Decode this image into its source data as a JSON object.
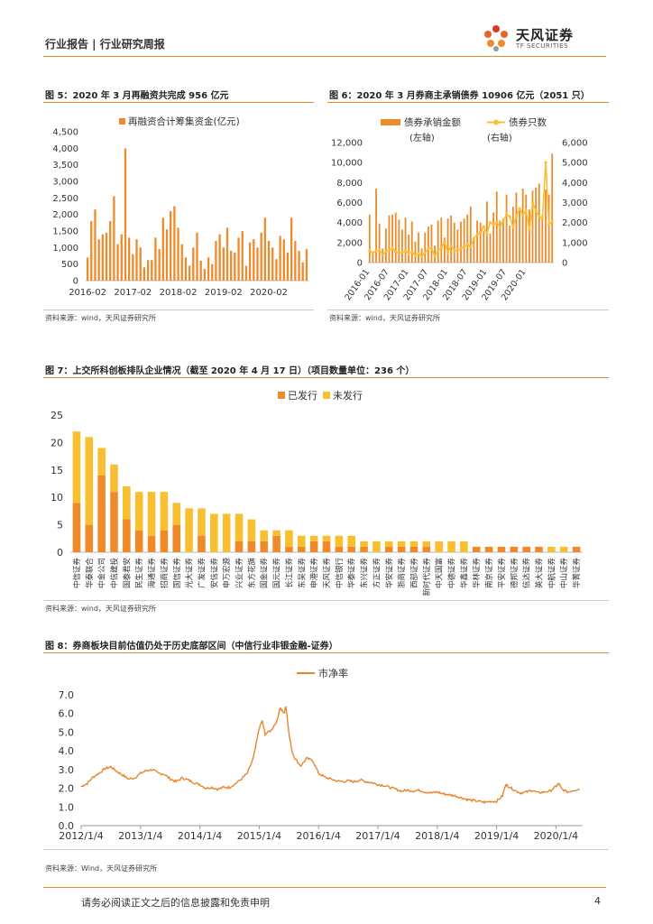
{
  "header": {
    "text": "行业报告 | 行业研究周报"
  },
  "logo": {
    "name": "天风证券",
    "sub": "TF SECURITIES"
  },
  "figures": {
    "fig5": {
      "title": "图 5：2020 年 3 月再融资共完成 956 亿元",
      "source": "资料来源：wind，天风证券研究所"
    },
    "fig6": {
      "title": "图 6：2020 年 3 月券商主承销债券 10906 亿元（2051 只）",
      "source": "资料来源：wind，天风证券研究所"
    },
    "fig7": {
      "title": "图 7：上交所科创板排队企业情况（截至 2020 年 4 月 17 日）（项目数量单位：236 个）",
      "source": "资料来源：wind，天风证券研究所"
    },
    "fig8": {
      "title": "图 8：券商板块目前估值仍处于历史底部区间（中信行业非银金融-证券）",
      "source": "资料来源：Wind，天风证券研究所"
    }
  },
  "footer": {
    "disclaimer": "请务必阅读正文之后的信息披露和免责申明",
    "page": "4"
  },
  "colors": {
    "orange": "#ef8a2a",
    "yellow": "#f8c030",
    "line": "#e8862e",
    "accent": "#e58a2c"
  },
  "chart_data": [
    {
      "id": "fig5",
      "type": "bar",
      "legend": [
        "再融资合计筹集资金(亿元)"
      ],
      "ylim": [
        0,
        4500
      ],
      "yticks": [
        "0",
        "500",
        "1,000",
        "1,500",
        "2,000",
        "2,500",
        "3,000",
        "3,500",
        "4,000",
        "4,500"
      ],
      "xticks": [
        "2016-02",
        "2017-02",
        "2018-02",
        "2019-02",
        "2020-02"
      ],
      "values": [
        700,
        1800,
        2150,
        1250,
        1400,
        1450,
        1800,
        2550,
        1100,
        1400,
        4000,
        1300,
        800,
        1250,
        1000,
        400,
        620,
        620,
        1300,
        950,
        1900,
        1550,
        2100,
        2250,
        1600,
        1100,
        700,
        450,
        1000,
        1450,
        600,
        350,
        700,
        500,
        1200,
        1400,
        1000,
        1600,
        900,
        850,
        1300,
        1500,
        450,
        1150,
        1250,
        1000,
        1450,
        1900,
        1200,
        1000,
        650,
        1350,
        1250,
        850,
        1900,
        1200,
        900,
        550,
        950
      ],
      "series": [
        {
          "name": "再融资合计筹集资金(亿元)"
        }
      ]
    },
    {
      "id": "fig6",
      "type": "bar+line",
      "legend": [
        "债券承销金额",
        "债券只数"
      ],
      "legend_sub": [
        "(左轴)",
        "(右轴)"
      ],
      "ylim_left": [
        0,
        12000
      ],
      "ylim_right": [
        0,
        6000
      ],
      "yticks_left": [
        "0",
        "2,000",
        "4,000",
        "6,000",
        "8,000",
        "10,000",
        "12,000"
      ],
      "yticks_right": [
        "0",
        "1,000",
        "2,000",
        "3,000",
        "4,000",
        "5,000",
        "6,000"
      ],
      "xticks": [
        "2016-01",
        "2016-07",
        "2017-01",
        "2017-07",
        "2018-01",
        "2018-07",
        "2019-01",
        "2019-07",
        "2020-01"
      ],
      "series": [
        {
          "name": "债券承销金额",
          "axis": "left",
          "values": [
            4800,
            1100,
            7400,
            3900,
            1400,
            3400,
            4700,
            4800,
            5000,
            4300,
            3300,
            4500,
            2800,
            4100,
            2100,
            3000,
            1400,
            3000,
            3600,
            3800,
            1700,
            4200,
            4500,
            2500,
            4400,
            4700,
            4000,
            3300,
            4100,
            4400,
            4800,
            5600,
            2400,
            4200,
            4000,
            3200,
            6100,
            2900,
            5000,
            7100,
            4200,
            4400,
            6800,
            3700,
            5600,
            7000,
            5200,
            7400,
            6800,
            5300,
            7200,
            7500,
            7900,
            4800,
            7300,
            6800,
            10900
          ]
        },
        {
          "name": "债券只数",
          "axis": "right",
          "values": [
            600,
            480,
            580,
            620,
            400,
            560,
            620,
            700,
            560,
            450,
            520,
            580,
            470,
            530,
            380,
            450,
            320,
            480,
            700,
            720,
            320,
            600,
            720,
            1050,
            500,
            850,
            600,
            600,
            700,
            800,
            900,
            800,
            1200,
            1400,
            1500,
            1800,
            1450,
            2000,
            1900,
            2000,
            1800,
            2100,
            2400,
            2300,
            1800,
            2300,
            2700,
            2400,
            2600,
            1600,
            3000,
            2600,
            2300,
            2200,
            5000,
            1900,
            2051
          ]
        }
      ]
    },
    {
      "id": "fig7",
      "type": "stacked-bar",
      "legend": [
        "已发行",
        "未发行"
      ],
      "ylim": [
        0,
        25
      ],
      "yticks": [
        "0",
        "5",
        "10",
        "15",
        "20",
        "25"
      ],
      "categories": [
        "中信证券",
        "华泰联合",
        "中金公司",
        "中信建投",
        "国泰君安",
        "民生证券",
        "海通证券",
        "招商证券",
        "国信证券",
        "光大证券",
        "广发证券",
        "安信证券",
        "申万宏源",
        "兴业证券",
        "东方花旗",
        "国金证券",
        "国元证券",
        "长江证券",
        "东吴证券",
        "申港证券",
        "天风证券",
        "中信银行",
        "华泰证券",
        "东兴证券",
        "方正证券",
        "华安证券",
        "浙商证券",
        "西部证券",
        "新时代证券",
        "中天国富",
        "中德证券",
        "华鑫证券",
        "华林证券",
        "南京证券",
        "平安证券",
        "德邦证券",
        "信达证券",
        "英大证券",
        "中航证券",
        "中山证券",
        "华菁证券"
      ],
      "series": [
        {
          "name": "已发行",
          "values": [
            9,
            5,
            14,
            11,
            6,
            4,
            3,
            4,
            5,
            0,
            3,
            0,
            0,
            2,
            2,
            2,
            3,
            1,
            1,
            2,
            2,
            1,
            1,
            1,
            0,
            1,
            1,
            1,
            1,
            0,
            0,
            0,
            1,
            1,
            1,
            1,
            1,
            1,
            0,
            0,
            1
          ]
        },
        {
          "name": "未发行",
          "values": [
            13,
            16,
            5,
            5,
            6,
            7,
            8,
            7,
            4,
            8,
            5,
            7,
            7,
            5,
            4,
            2,
            1,
            3,
            2,
            1,
            1,
            2,
            2,
            1,
            2,
            1,
            1,
            1,
            1,
            2,
            2,
            2,
            0,
            0,
            0,
            0,
            0,
            0,
            1,
            1,
            0
          ]
        }
      ]
    },
    {
      "id": "fig8",
      "type": "line",
      "legend": [
        "市净率"
      ],
      "ylim": [
        0,
        7
      ],
      "yticks": [
        "0.0",
        "1.0",
        "2.0",
        "3.0",
        "4.0",
        "5.0",
        "6.0",
        "7.0"
      ],
      "xticks": [
        "2012/1/4",
        "2013/1/4",
        "2014/1/4",
        "2015/1/4",
        "2016/1/4",
        "2017/1/4",
        "2018/1/4",
        "2019/1/4",
        "2020/1/4"
      ],
      "x_range": [
        2012.0,
        2020.45
      ],
      "points": [
        [
          2012.0,
          2.1
        ],
        [
          2012.1,
          2.25
        ],
        [
          2012.2,
          2.6
        ],
        [
          2012.3,
          2.8
        ],
        [
          2012.4,
          3.05
        ],
        [
          2012.5,
          3.15
        ],
        [
          2012.6,
          2.9
        ],
        [
          2012.7,
          2.7
        ],
        [
          2012.8,
          2.5
        ],
        [
          2012.9,
          2.55
        ],
        [
          2013.0,
          2.8
        ],
        [
          2013.1,
          2.95
        ],
        [
          2013.2,
          3.0
        ],
        [
          2013.3,
          2.8
        ],
        [
          2013.4,
          2.75
        ],
        [
          2013.5,
          2.5
        ],
        [
          2013.6,
          2.35
        ],
        [
          2013.7,
          2.55
        ],
        [
          2013.8,
          2.45
        ],
        [
          2013.9,
          2.3
        ],
        [
          2014.0,
          2.2
        ],
        [
          2014.1,
          2.0
        ],
        [
          2014.2,
          2.05
        ],
        [
          2014.3,
          1.95
        ],
        [
          2014.4,
          2.05
        ],
        [
          2014.5,
          2.05
        ],
        [
          2014.6,
          2.25
        ],
        [
          2014.7,
          2.5
        ],
        [
          2014.8,
          2.8
        ],
        [
          2014.9,
          3.6
        ],
        [
          2015.0,
          5.2
        ],
        [
          2015.05,
          5.6
        ],
        [
          2015.1,
          4.9
        ],
        [
          2015.2,
          5.1
        ],
        [
          2015.3,
          5.6
        ],
        [
          2015.35,
          6.3
        ],
        [
          2015.42,
          6.0
        ],
        [
          2015.45,
          6.4
        ],
        [
          2015.5,
          5.0
        ],
        [
          2015.55,
          4.0
        ],
        [
          2015.6,
          3.6
        ],
        [
          2015.7,
          3.2
        ],
        [
          2015.8,
          3.6
        ],
        [
          2015.9,
          3.5
        ],
        [
          2016.0,
          2.8
        ],
        [
          2016.1,
          2.6
        ],
        [
          2016.2,
          2.5
        ],
        [
          2016.3,
          2.4
        ],
        [
          2016.4,
          2.35
        ],
        [
          2016.5,
          2.4
        ],
        [
          2016.6,
          2.35
        ],
        [
          2016.7,
          2.45
        ],
        [
          2016.8,
          2.35
        ],
        [
          2016.9,
          2.3
        ],
        [
          2017.0,
          2.2
        ],
        [
          2017.1,
          2.15
        ],
        [
          2017.2,
          2.05
        ],
        [
          2017.3,
          1.95
        ],
        [
          2017.4,
          1.85
        ],
        [
          2017.5,
          1.9
        ],
        [
          2017.6,
          1.85
        ],
        [
          2017.7,
          1.9
        ],
        [
          2017.8,
          1.8
        ],
        [
          2017.9,
          1.75
        ],
        [
          2018.0,
          1.8
        ],
        [
          2018.1,
          1.7
        ],
        [
          2018.2,
          1.65
        ],
        [
          2018.3,
          1.6
        ],
        [
          2018.4,
          1.5
        ],
        [
          2018.5,
          1.4
        ],
        [
          2018.6,
          1.35
        ],
        [
          2018.7,
          1.3
        ],
        [
          2018.8,
          1.25
        ],
        [
          2018.9,
          1.3
        ],
        [
          2019.0,
          1.3
        ],
        [
          2019.1,
          1.6
        ],
        [
          2019.15,
          2.2
        ],
        [
          2019.2,
          2.1
        ],
        [
          2019.3,
          1.9
        ],
        [
          2019.4,
          1.75
        ],
        [
          2019.5,
          1.8
        ],
        [
          2019.6,
          1.9
        ],
        [
          2019.7,
          1.75
        ],
        [
          2019.8,
          1.8
        ],
        [
          2019.9,
          1.85
        ],
        [
          2020.0,
          2.1
        ],
        [
          2020.05,
          2.25
        ],
        [
          2020.1,
          1.95
        ],
        [
          2020.2,
          1.8
        ],
        [
          2020.3,
          1.9
        ],
        [
          2020.4,
          1.95
        ]
      ]
    }
  ]
}
